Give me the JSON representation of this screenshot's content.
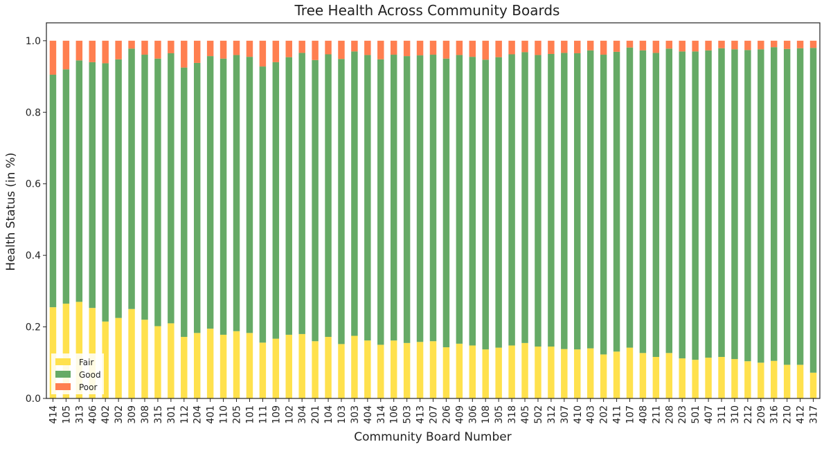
{
  "chart_data": {
    "type": "bar",
    "stacked": true,
    "title": "Tree Health Across Community Boards",
    "xlabel": "Community Board Number",
    "ylabel": "Health Status (in %)",
    "ylim": [
      0,
      1.05
    ],
    "yticks": [
      "0.0",
      "0.2",
      "0.4",
      "0.6",
      "0.8",
      "1.0"
    ],
    "grid": false,
    "legend_position": "lower-left",
    "categories": [
      "414",
      "105",
      "313",
      "406",
      "402",
      "302",
      "309",
      "308",
      "315",
      "301",
      "112",
      "204",
      "401",
      "110",
      "205",
      "101",
      "111",
      "109",
      "102",
      "304",
      "201",
      "104",
      "103",
      "303",
      "404",
      "314",
      "106",
      "503",
      "413",
      "207",
      "206",
      "409",
      "306",
      "108",
      "305",
      "318",
      "405",
      "502",
      "312",
      "307",
      "410",
      "403",
      "202",
      "411",
      "107",
      "408",
      "211",
      "208",
      "203",
      "501",
      "407",
      "311",
      "310",
      "212",
      "209",
      "316",
      "210",
      "412",
      "317"
    ],
    "series": [
      {
        "name": "Fair",
        "color": "#ffe14d",
        "values": [
          0.255,
          0.265,
          0.27,
          0.253,
          0.215,
          0.225,
          0.25,
          0.22,
          0.202,
          0.21,
          0.172,
          0.183,
          0.195,
          0.178,
          0.188,
          0.183,
          0.156,
          0.167,
          0.178,
          0.18,
          0.16,
          0.172,
          0.152,
          0.175,
          0.162,
          0.15,
          0.162,
          0.155,
          0.158,
          0.16,
          0.143,
          0.153,
          0.148,
          0.137,
          0.142,
          0.148,
          0.155,
          0.145,
          0.145,
          0.138,
          0.137,
          0.14,
          0.123,
          0.131,
          0.142,
          0.127,
          0.116,
          0.127,
          0.112,
          0.108,
          0.114,
          0.116,
          0.11,
          0.104,
          0.1,
          0.105,
          0.094,
          0.094,
          0.072
        ]
      },
      {
        "name": "Good",
        "color": "#66aa66",
        "values": [
          0.65,
          0.655,
          0.675,
          0.687,
          0.722,
          0.723,
          0.728,
          0.741,
          0.748,
          0.755,
          0.753,
          0.755,
          0.762,
          0.772,
          0.772,
          0.772,
          0.772,
          0.773,
          0.776,
          0.786,
          0.786,
          0.79,
          0.797,
          0.795,
          0.798,
          0.798,
          0.799,
          0.802,
          0.801,
          0.801,
          0.807,
          0.807,
          0.807,
          0.81,
          0.812,
          0.814,
          0.813,
          0.815,
          0.818,
          0.828,
          0.828,
          0.833,
          0.838,
          0.838,
          0.839,
          0.846,
          0.85,
          0.851,
          0.858,
          0.862,
          0.859,
          0.863,
          0.866,
          0.87,
          0.876,
          0.877,
          0.883,
          0.885,
          0.908
        ]
      },
      {
        "name": "Poor",
        "color": "#ff7f50",
        "values": [
          0.095,
          0.08,
          0.055,
          0.06,
          0.063,
          0.052,
          0.022,
          0.039,
          0.05,
          0.035,
          0.075,
          0.062,
          0.043,
          0.05,
          0.04,
          0.045,
          0.072,
          0.06,
          0.046,
          0.034,
          0.054,
          0.038,
          0.051,
          0.03,
          0.04,
          0.052,
          0.039,
          0.043,
          0.041,
          0.039,
          0.05,
          0.04,
          0.045,
          0.053,
          0.046,
          0.038,
          0.032,
          0.04,
          0.037,
          0.034,
          0.035,
          0.027,
          0.039,
          0.031,
          0.019,
          0.027,
          0.034,
          0.022,
          0.03,
          0.03,
          0.027,
          0.021,
          0.024,
          0.026,
          0.024,
          0.018,
          0.023,
          0.021,
          0.02
        ]
      }
    ]
  }
}
